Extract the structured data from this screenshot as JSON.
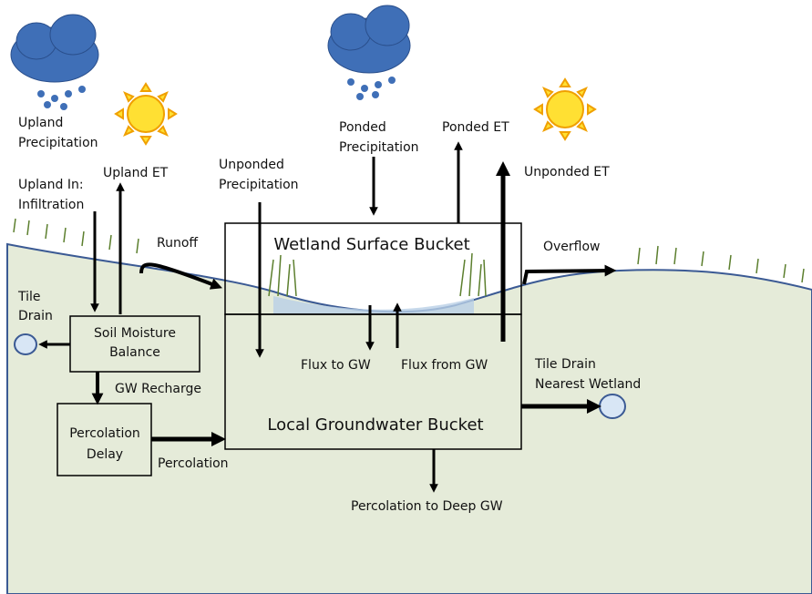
{
  "labels": {
    "upland_precipitation": [
      "Upland",
      "Precipitation"
    ],
    "upland_infiltration": [
      "Upland In:",
      "Infiltration"
    ],
    "upland_et": [
      "Upland ET"
    ],
    "unponded_precipitation": [
      "Unponded",
      "Precipitation"
    ],
    "ponded_precipitation": [
      "Ponded",
      "Precipitation"
    ],
    "ponded_et": [
      "Ponded ET"
    ],
    "unponded_et": [
      "Unponded ET"
    ],
    "runoff": [
      "Runoff"
    ],
    "wetland_surface_bucket": [
      "Wetland Surface Bucket"
    ],
    "overflow": [
      "Overflow"
    ],
    "tile_drain": [
      "Tile",
      "Drain"
    ],
    "soil_moisture_balance": [
      "Soil Moisture",
      "Balance"
    ],
    "gw_recharge": [
      "GW Recharge"
    ],
    "percolation_delay": [
      "Percolation",
      "Delay"
    ],
    "percolation": [
      "Percolation"
    ],
    "flux_to_gw": [
      "Flux to GW"
    ],
    "flux_from_gw": [
      "Flux from GW"
    ],
    "tile_drain_nearest_wetland": [
      "Tile Drain",
      "Nearest Wetland"
    ],
    "local_groundwater_bucket": [
      "Local Groundwater Bucket"
    ],
    "percolation_to_deep_gw": [
      "Percolation to Deep GW"
    ]
  }
}
